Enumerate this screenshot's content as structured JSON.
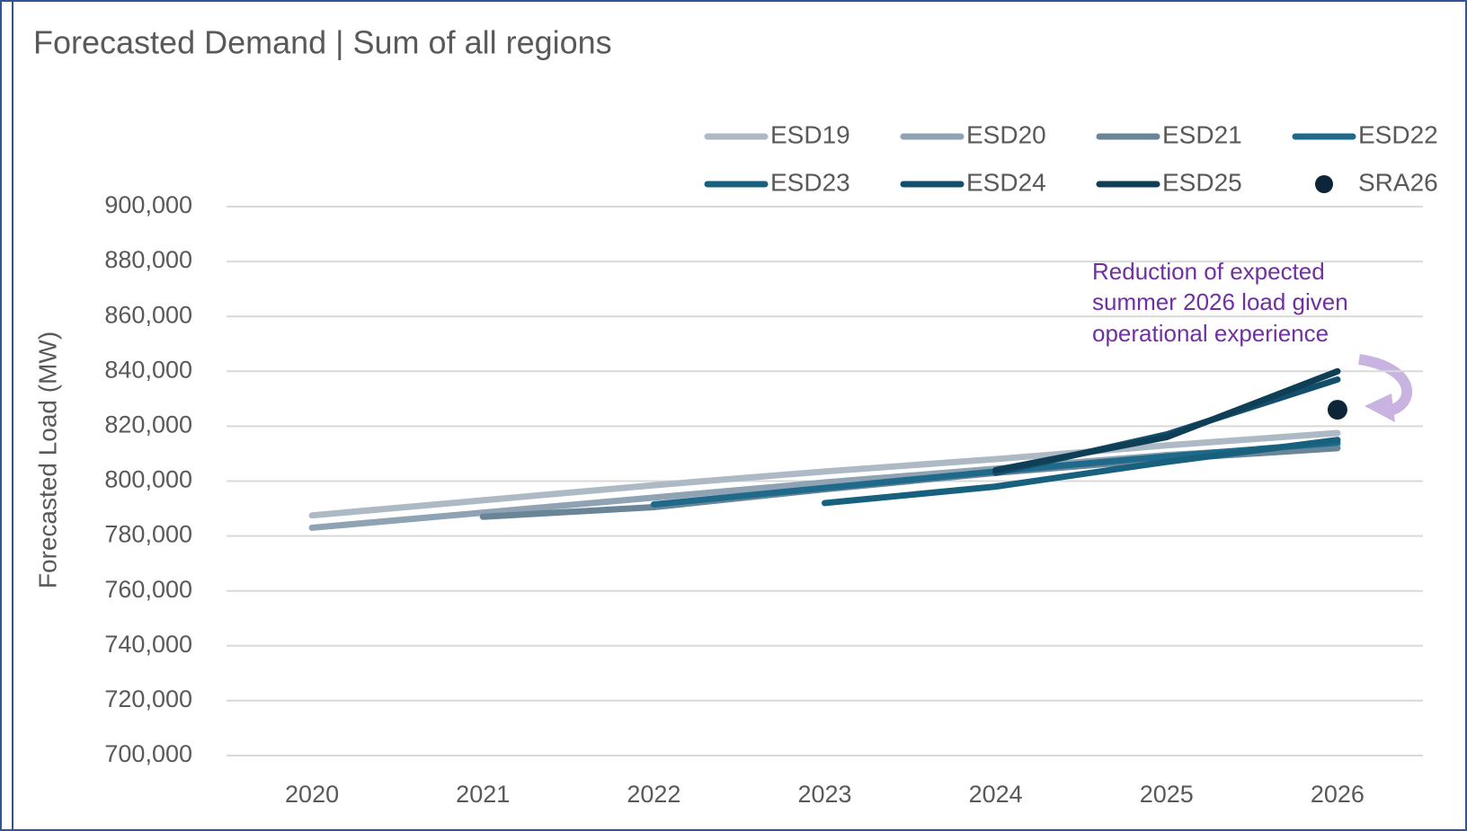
{
  "chart_data": {
    "type": "line",
    "title": "Forecasted Demand | Sum of all regions",
    "y_label": "Forecasted Load (MW)",
    "annotation": [
      "Reduction of expected",
      "summer 2026 load given",
      "operational experience"
    ],
    "categories": [
      "2020",
      "2021",
      "2022",
      "2023",
      "2024",
      "2025",
      "2026"
    ],
    "series": [
      {
        "name": "ESD19",
        "type": "line",
        "color": "#adb9c4",
        "values": [
          787500,
          793000,
          798500,
          803500,
          808000,
          813000,
          817500
        ]
      },
      {
        "name": "ESD20",
        "type": "line",
        "color": "#8fa3b4",
        "values": [
          783000,
          788500,
          794000,
          799500,
          804500,
          809500,
          813000
        ]
      },
      {
        "name": "ESD21",
        "type": "line",
        "color": "#6a8598",
        "values": [
          null,
          787000,
          790500,
          797000,
          803000,
          808000,
          812000
        ]
      },
      {
        "name": "ESD22",
        "type": "line",
        "color": "#1f6a8a",
        "values": [
          null,
          null,
          791500,
          797500,
          803500,
          809000,
          814000
        ]
      },
      {
        "name": "ESD23",
        "type": "line",
        "color": "#18617e",
        "values": [
          null,
          null,
          null,
          792000,
          798000,
          807000,
          815000
        ]
      },
      {
        "name": "ESD24",
        "type": "line",
        "color": "#134f6c",
        "values": [
          null,
          null,
          null,
          null,
          803000,
          817000,
          837000
        ]
      },
      {
        "name": "ESD25",
        "type": "line",
        "color": "#0f3e57",
        "values": [
          null,
          null,
          null,
          null,
          804000,
          816000,
          840000
        ]
      },
      {
        "name": "SRA26",
        "type": "scatter",
        "color": "#0d2538",
        "values": [
          null,
          null,
          null,
          null,
          null,
          null,
          826000
        ]
      }
    ],
    "ylim": [
      700000,
      900000
    ],
    "yticks": [
      {
        "value": 700000,
        "label": "700,000"
      },
      {
        "value": 720000,
        "label": "720,000"
      },
      {
        "value": 740000,
        "label": "740,000"
      },
      {
        "value": 760000,
        "label": "760,000"
      },
      {
        "value": 780000,
        "label": "780,000"
      },
      {
        "value": 800000,
        "label": "800,000"
      },
      {
        "value": 820000,
        "label": "820,000"
      },
      {
        "value": 840000,
        "label": "840,000"
      },
      {
        "value": 860000,
        "label": "860,000"
      },
      {
        "value": 880000,
        "label": "880,000"
      },
      {
        "value": 900000,
        "label": "900,000"
      }
    ],
    "grid": true,
    "legend": "top-right"
  }
}
